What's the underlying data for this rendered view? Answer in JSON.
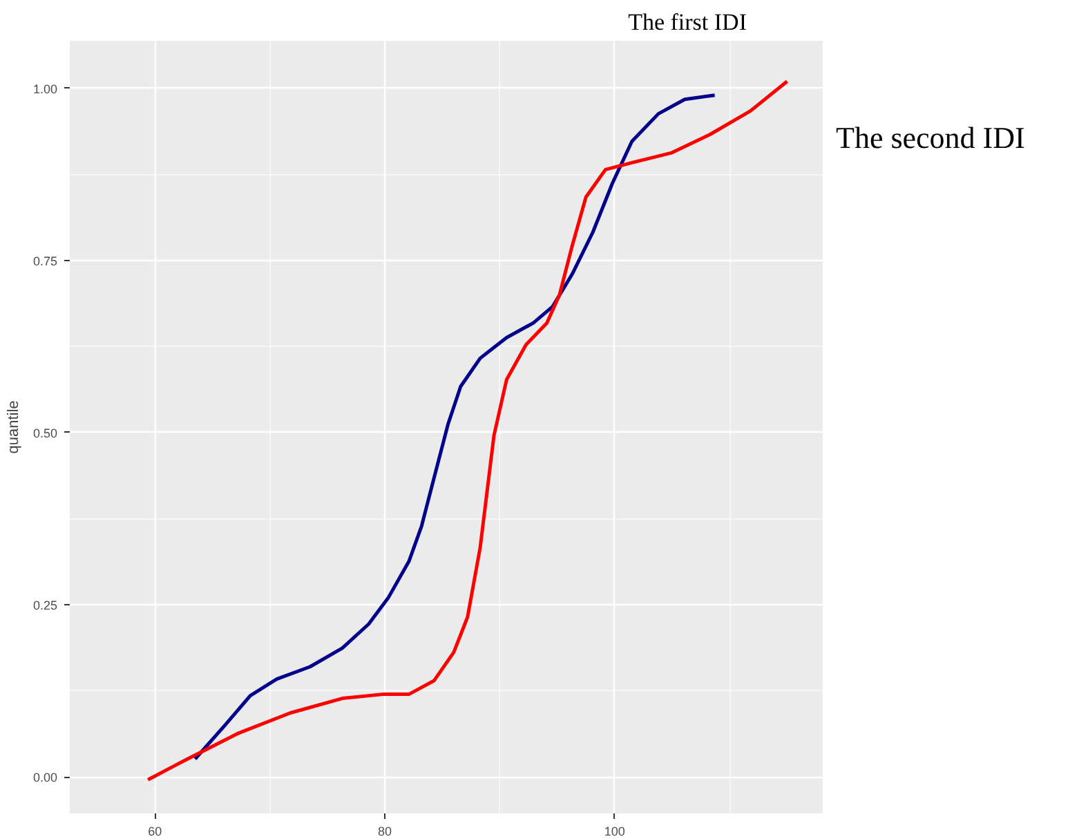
{
  "chart_data": {
    "type": "line",
    "ylabel": "quantile",
    "xlim": [
      52.6,
      118.1
    ],
    "ylim": [
      -0.053,
      1.069
    ],
    "xticks": [
      60,
      80,
      100
    ],
    "yticks": [
      {
        "value": 0,
        "label": "0.00"
      },
      {
        "value": 0.25,
        "label": "0.25"
      },
      {
        "value": 0.5,
        "label": "0.50"
      },
      {
        "value": 0.75,
        "label": "0.75"
      },
      {
        "value": 1,
        "label": "1.00"
      }
    ],
    "grid": true,
    "legend": false,
    "marker": "none",
    "line_style": "solid",
    "series": [
      {
        "name": "The first IDI",
        "color": "#00008b",
        "x": [
          63.5,
          66.1,
          68.3,
          70.6,
          73.5,
          76.3,
          78.6,
          80.3,
          82.1,
          83.2,
          84.3,
          85.5,
          86.6,
          88.3,
          90.6,
          92.9,
          94.6,
          96.3,
          98.1,
          99.8,
          101.5,
          103.8,
          106.1,
          108.7
        ],
        "values": [
          0.026,
          0.075,
          0.118,
          0.142,
          0.16,
          0.187,
          0.222,
          0.26,
          0.313,
          0.364,
          0.435,
          0.512,
          0.567,
          0.608,
          0.638,
          0.659,
          0.683,
          0.73,
          0.791,
          0.862,
          0.923,
          0.963,
          0.984,
          0.99
        ]
      },
      {
        "name": "The second IDI",
        "color": "#ff0000",
        "x": [
          59.4,
          62.6,
          67.2,
          71.8,
          76.3,
          79.8,
          82.1,
          84.3,
          86.0,
          87.2,
          88.3,
          89.5,
          90.6,
          92.3,
          94.1,
          95.2,
          96.3,
          97.5,
          99.2,
          101.5,
          104.9,
          108.3,
          111.8,
          115.0
        ],
        "values": [
          -0.004,
          0.024,
          0.063,
          0.093,
          0.114,
          0.12,
          0.12,
          0.14,
          0.181,
          0.232,
          0.333,
          0.496,
          0.577,
          0.628,
          0.659,
          0.7,
          0.771,
          0.842,
          0.882,
          0.892,
          0.906,
          0.933,
          0.967,
          1.01
        ]
      }
    ]
  }
}
